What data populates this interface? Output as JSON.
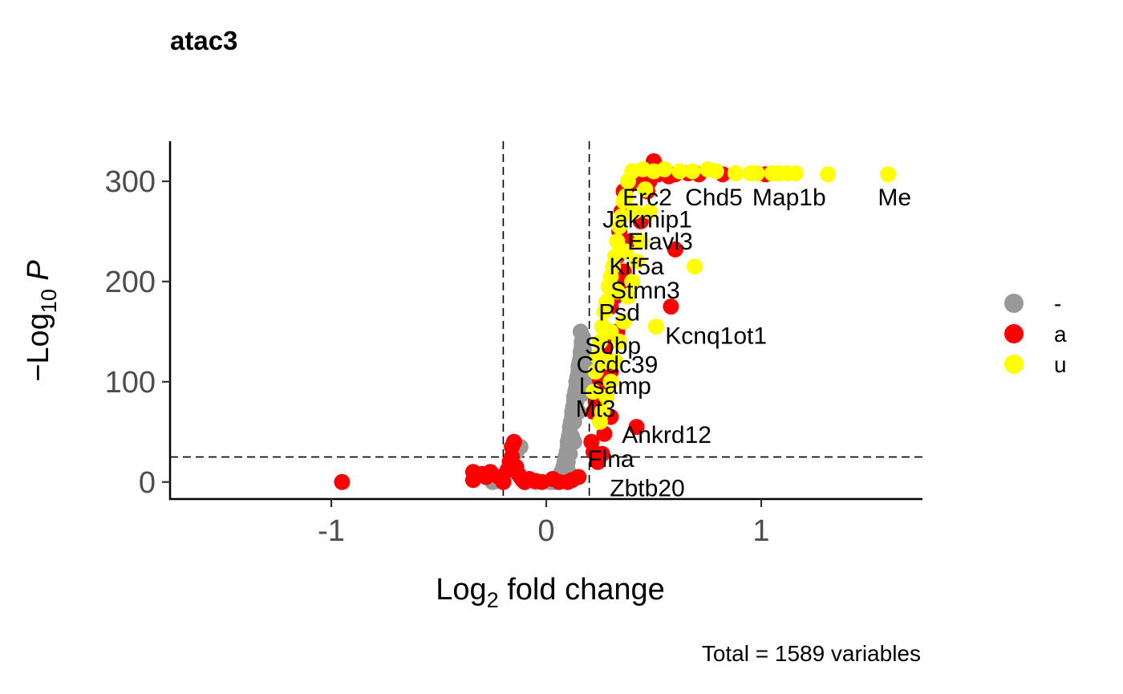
{
  "chart_data": {
    "type": "scatter",
    "title": "atac3",
    "xlabel": "Log2 fold change",
    "ylabel": "-Log10 P",
    "caption": "Total = 1589 variables",
    "xlim": [
      -1.75,
      1.75
    ],
    "ylim": [
      -17,
      340
    ],
    "xticks": [
      "-1",
      "0",
      "1"
    ],
    "yticks": [
      "0",
      "100",
      "200",
      "300"
    ],
    "cutoffs": {
      "fc": [
        -0.2,
        0.2
      ],
      "p": 25
    },
    "legend": {
      "placement": "right",
      "entries": [
        {
          "label": "-",
          "color": "#999999"
        },
        {
          "label": "a",
          "color": "#ff0000"
        },
        {
          "label": "u",
          "color": "#ffff00"
        }
      ]
    },
    "series": [
      {
        "label": "-",
        "color": "#999999",
        "points": [
          [
            -0.25,
            0
          ],
          [
            -0.23,
            1
          ],
          [
            -0.2,
            2
          ],
          [
            -0.14,
            30
          ],
          [
            -0.12,
            35
          ],
          [
            -0.1,
            0
          ],
          [
            -0.05,
            0
          ],
          [
            0.02,
            0
          ],
          [
            0.04,
            0
          ],
          [
            0.05,
            2
          ],
          [
            0.06,
            5
          ],
          [
            0.07,
            10
          ],
          [
            0.08,
            15
          ],
          [
            0.085,
            20
          ],
          [
            0.09,
            25
          ],
          [
            0.095,
            30
          ],
          [
            0.1,
            35
          ],
          [
            0.1,
            40
          ],
          [
            0.105,
            45
          ],
          [
            0.11,
            50
          ],
          [
            0.11,
            55
          ],
          [
            0.115,
            60
          ],
          [
            0.12,
            65
          ],
          [
            0.12,
            70
          ],
          [
            0.125,
            75
          ],
          [
            0.13,
            80
          ],
          [
            0.13,
            85
          ],
          [
            0.135,
            90
          ],
          [
            0.14,
            95
          ],
          [
            0.14,
            100
          ],
          [
            0.145,
            105
          ],
          [
            0.15,
            110
          ],
          [
            0.15,
            115
          ],
          [
            0.155,
            120
          ],
          [
            0.16,
            125
          ],
          [
            0.16,
            130
          ],
          [
            0.165,
            135
          ],
          [
            0.165,
            140
          ],
          [
            0.17,
            145
          ],
          [
            0.16,
            150
          ],
          [
            0.1,
            20
          ],
          [
            0.09,
            8
          ],
          [
            0.12,
            45
          ],
          [
            0.13,
            60
          ],
          [
            0.14,
            80
          ],
          [
            0.15,
            95
          ],
          [
            0.16,
            110
          ],
          [
            0.17,
            125
          ],
          [
            0.175,
            132
          ],
          [
            0.18,
            118
          ],
          [
            0.18,
            100
          ],
          [
            0.17,
            88
          ],
          [
            0.15,
            70
          ],
          [
            0.13,
            40
          ],
          [
            0.11,
            28
          ],
          [
            0.1,
            12
          ],
          [
            0.07,
            4
          ],
          [
            0.08,
            6
          ]
        ]
      },
      {
        "label": "a",
        "color": "#ff0000",
        "points": [
          [
            -0.95,
            0
          ],
          [
            -0.34,
            2
          ],
          [
            -0.34,
            10
          ],
          [
            -0.3,
            8
          ],
          [
            -0.28,
            5
          ],
          [
            -0.26,
            10
          ],
          [
            -0.22,
            5
          ],
          [
            -0.2,
            0
          ],
          [
            -0.18,
            12
          ],
          [
            -0.17,
            20
          ],
          [
            -0.16,
            25
          ],
          [
            -0.16,
            35
          ],
          [
            -0.15,
            40
          ],
          [
            -0.14,
            15
          ],
          [
            -0.13,
            8
          ],
          [
            -0.12,
            5
          ],
          [
            -0.11,
            2
          ],
          [
            -0.1,
            0
          ],
          [
            -0.08,
            3
          ],
          [
            -0.05,
            1
          ],
          [
            -0.02,
            0
          ],
          [
            0.03,
            3
          ],
          [
            0.06,
            0
          ],
          [
            0.1,
            0
          ],
          [
            0.12,
            2
          ],
          [
            0.15,
            5
          ],
          [
            0.21,
            40
          ],
          [
            0.22,
            30
          ],
          [
            0.24,
            20
          ],
          [
            0.23,
            80
          ],
          [
            0.25,
            100
          ],
          [
            0.27,
            130
          ],
          [
            0.28,
            150
          ],
          [
            0.3,
            175
          ],
          [
            0.31,
            200
          ],
          [
            0.33,
            225
          ],
          [
            0.34,
            250
          ],
          [
            0.35,
            270
          ],
          [
            0.36,
            290
          ],
          [
            0.38,
            295
          ],
          [
            0.4,
            300
          ],
          [
            0.42,
            305
          ],
          [
            0.44,
            310
          ],
          [
            0.46,
            305
          ],
          [
            0.48,
            300
          ],
          [
            0.5,
            320
          ],
          [
            0.52,
            307
          ],
          [
            0.55,
            308
          ],
          [
            0.57,
            305
          ],
          [
            0.6,
            307
          ],
          [
            0.66,
            308
          ],
          [
            0.71,
            307
          ],
          [
            0.82,
            307
          ],
          [
            1.02,
            307
          ],
          [
            0.6,
            232
          ],
          [
            0.58,
            175
          ],
          [
            0.3,
            65
          ],
          [
            0.42,
            55
          ],
          [
            0.26,
            28
          ],
          [
            0.27,
            48
          ],
          [
            0.3,
            110
          ],
          [
            0.33,
            150
          ],
          [
            0.35,
            200
          ],
          [
            0.38,
            240
          ],
          [
            0.44,
            260
          ],
          [
            0.47,
            290
          ],
          [
            0.22,
            70
          ],
          [
            0.25,
            90
          ],
          [
            0.29,
            140
          ],
          [
            0.32,
            185
          ],
          [
            0.36,
            210
          ]
        ]
      },
      {
        "label": "u",
        "color": "#ffff00",
        "points": [
          [
            0.22,
            90
          ],
          [
            0.23,
            110
          ],
          [
            0.24,
            125
          ],
          [
            0.25,
            140
          ],
          [
            0.26,
            155
          ],
          [
            0.27,
            170
          ],
          [
            0.28,
            180
          ],
          [
            0.29,
            195
          ],
          [
            0.3,
            205
          ],
          [
            0.31,
            215
          ],
          [
            0.32,
            225
          ],
          [
            0.33,
            240
          ],
          [
            0.34,
            255
          ],
          [
            0.35,
            265
          ],
          [
            0.36,
            280
          ],
          [
            0.37,
            285
          ],
          [
            0.38,
            300
          ],
          [
            0.4,
            310
          ],
          [
            0.45,
            312
          ],
          [
            0.5,
            310
          ],
          [
            0.55,
            312
          ],
          [
            0.62,
            310
          ],
          [
            0.68,
            310
          ],
          [
            0.75,
            312
          ],
          [
            0.79,
            310
          ],
          [
            0.88,
            308
          ],
          [
            0.95,
            308
          ],
          [
            0.98,
            308
          ],
          [
            1.05,
            308
          ],
          [
            1.08,
            308
          ],
          [
            1.12,
            308
          ],
          [
            1.16,
            308
          ],
          [
            1.31,
            307
          ],
          [
            1.59,
            307
          ],
          [
            0.69,
            215
          ],
          [
            0.51,
            155
          ],
          [
            0.48,
            270
          ],
          [
            0.44,
            240
          ],
          [
            0.42,
            220
          ],
          [
            0.4,
            200
          ],
          [
            0.38,
            185
          ],
          [
            0.36,
            160
          ],
          [
            0.34,
            140
          ],
          [
            0.32,
            120
          ],
          [
            0.3,
            100
          ],
          [
            0.28,
            85
          ],
          [
            0.26,
            70
          ],
          [
            0.25,
            60
          ],
          [
            0.28,
            120
          ],
          [
            0.3,
            150
          ],
          [
            0.33,
            190
          ],
          [
            0.37,
            230
          ],
          [
            0.41,
            270
          ],
          [
            0.46,
            292
          ]
        ]
      }
    ],
    "labels": [
      {
        "text": "Erc2",
        "x": 0.47,
        "y": 284
      },
      {
        "text": "Chd5",
        "x": 0.78,
        "y": 284
      },
      {
        "text": "Map1b",
        "x": 1.13,
        "y": 284
      },
      {
        "text": "Me",
        "x": 1.62,
        "y": 284
      },
      {
        "text": "Jakmip1",
        "x": 0.47,
        "y": 262
      },
      {
        "text": "Elavl3",
        "x": 0.53,
        "y": 240
      },
      {
        "text": "Kif5a",
        "x": 0.42,
        "y": 215
      },
      {
        "text": "Stmn3",
        "x": 0.46,
        "y": 191
      },
      {
        "text": "Psd",
        "x": 0.34,
        "y": 169
      },
      {
        "text": "Kcnq1ot1",
        "x": 0.79,
        "y": 146
      },
      {
        "text": "Sobp",
        "x": 0.31,
        "y": 136
      },
      {
        "text": "Ccdc39",
        "x": 0.33,
        "y": 117
      },
      {
        "text": "Lsamp",
        "x": 0.32,
        "y": 96
      },
      {
        "text": "Mt3",
        "x": 0.23,
        "y": 73
      },
      {
        "text": "Ankrd12",
        "x": 0.56,
        "y": 47
      },
      {
        "text": "Flna",
        "x": 0.3,
        "y": 23
      },
      {
        "text": "Zbtb20",
        "x": 0.47,
        "y": -6
      }
    ]
  }
}
